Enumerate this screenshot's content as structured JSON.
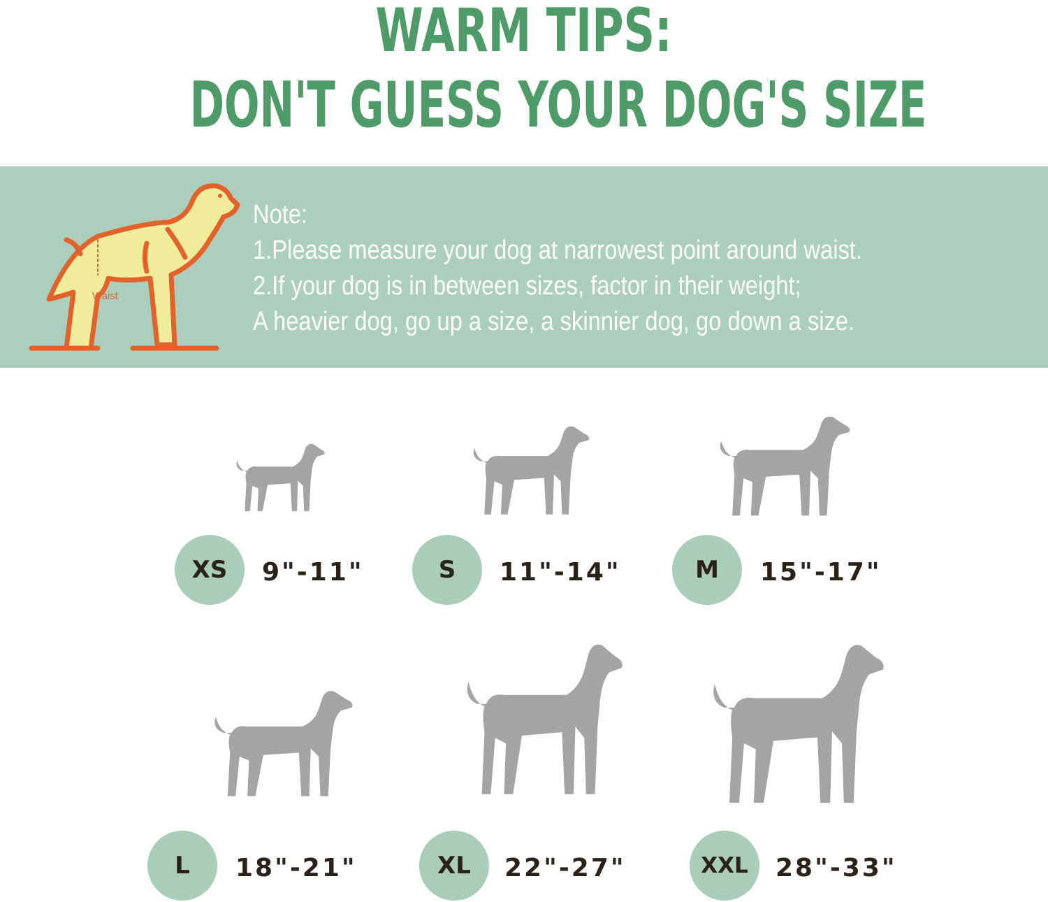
{
  "header": {
    "line1": "WARM TIPS:",
    "line2": "DON'T GUESS YOUR DOG'S SIZE",
    "color": "#4e9a69"
  },
  "note_band": {
    "background": "#abcfbc",
    "illustration_label": "Waist",
    "title": "Note:",
    "lines": [
      "1.Please measure your dog at narrowest point around  waist.",
      "2.If your dog is in between sizes, factor in their weight;",
      "A heavier dog, go up a size, a skinnier dog, go down a  size."
    ]
  },
  "sizes": [
    {
      "label": "XS",
      "range": "9\"-11\""
    },
    {
      "label": "S",
      "range": "11\"-14\""
    },
    {
      "label": "M",
      "range": "15\"-17\""
    },
    {
      "label": "L",
      "range": "18\"-21\""
    },
    {
      "label": "XL",
      "range": "22\"-27\""
    },
    {
      "label": "XXL",
      "range": "28\"-33\""
    }
  ],
  "colors": {
    "circle": "#a9cdb9",
    "silhouette": "#a3a4a6",
    "text": "#2a2118"
  }
}
